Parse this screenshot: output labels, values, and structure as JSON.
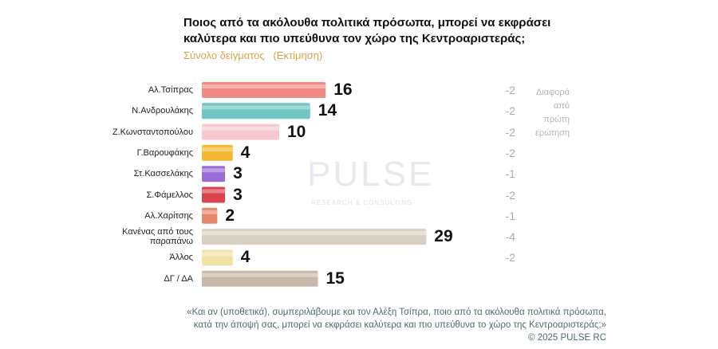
{
  "chart_data": {
    "type": "bar",
    "title": [
      "Ποιος από τα ακόλουθα πολιτικά πρόσωπα, μπορεί να εκφράσει",
      "καλύτερα και πιο υπεύθυνα τον χώρο της Κεντροαριστεράς;"
    ],
    "subtitle": "Σύνολο δείγματος   (Εκτίμηση)",
    "categories": [
      "Αλ.Τσίπρας",
      "Ν.Ανδρουλάκης",
      "Ζ.Κωνσταντοπούλου",
      "Γ.Βαρουφάκης",
      "Στ.Κασσελάκης",
      "Σ.Φάμελλος",
      "Αλ.Χαρίτσης",
      "Κανένας από τους παραπάνω",
      "Άλλος",
      "ΔΓ / ΔΑ"
    ],
    "values": [
      16,
      14,
      10,
      4,
      3,
      3,
      2,
      29,
      4,
      15
    ],
    "colors": [
      "#f08a84",
      "#6fc6c2",
      "#f5c9cf",
      "#f5b733",
      "#9a6cd6",
      "#d9434c",
      "#e8866c",
      "#d9d0c4",
      "#f3e2a6",
      "#c9b8a8"
    ],
    "diff_header": "Διαφορά από πρώτη ερώτηση",
    "diffs": [
      -2,
      -2,
      -2,
      -2,
      -1,
      -2,
      -1,
      -4,
      -2,
      null
    ]
  },
  "watermark": [
    "PULSE",
    "RESEARCH & CONSULTING"
  ],
  "footnote": [
    "«Και αν (υποθετικά), συμπεριλάβουμε και τον Αλέξη Τσίπρα, ποιο από τα ακόλουθα πολιτικά πρόσωπα,",
    "κατά την άποψή σας, μπορεί να εκφράσει καλύτερα και πιο υπεύθυνα το χώρο της Κεντροαριστεράς;»"
  ],
  "copyright": "©  2025  PULSE RC"
}
